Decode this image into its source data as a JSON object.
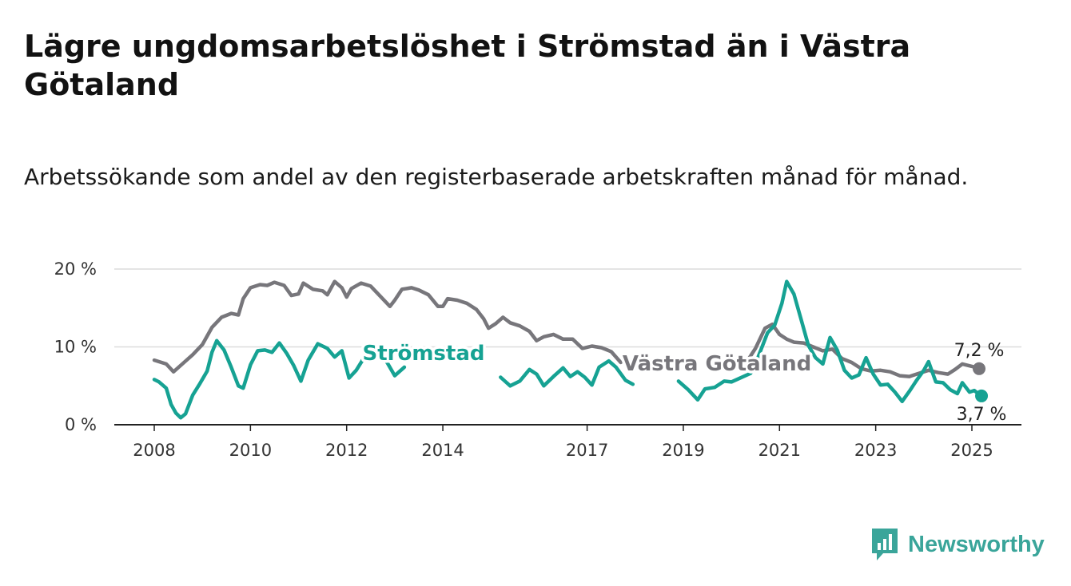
{
  "title": "Lägre ungdomsarbetslöshet i Strömstad än i Västra Götaland",
  "subtitle": "Arbetssökande som andel av den registerbaserade arbetskraften månad för månad.",
  "brand": {
    "name": "Newsworthy",
    "icon": "newsworthy-logo-icon",
    "color": "#3aa59a"
  },
  "chart_data": {
    "type": "line",
    "title": "Lägre ungdomsarbetslöshet i Strömstad än i Västra Götaland",
    "xlabel": "",
    "ylabel": "",
    "xlim": [
      2008.0,
      2025.25
    ],
    "ylim": [
      0,
      20
    ],
    "grid": "horizontal",
    "legend": "inline labels",
    "x_ticks": [
      2008,
      2010,
      2012,
      2014,
      2017,
      2019,
      2021,
      2023,
      2025
    ],
    "x_tick_labels": [
      "2008",
      "2010",
      "2012",
      "2014",
      "2017",
      "2019",
      "2021",
      "2023",
      "2025"
    ],
    "y_ticks": [
      0,
      10,
      20
    ],
    "y_tick_labels": [
      "0 %",
      "10 %",
      "20 %"
    ],
    "series": [
      {
        "name": "Västra Götaland",
        "color": "#77767b",
        "end_label": "7,2 %",
        "points": [
          [
            2008.0,
            8.3
          ],
          [
            2008.25,
            7.8
          ],
          [
            2008.4,
            6.8
          ],
          [
            2008.6,
            7.9
          ],
          [
            2008.8,
            9.0
          ],
          [
            2009.0,
            10.3
          ],
          [
            2009.2,
            12.5
          ],
          [
            2009.4,
            13.8
          ],
          [
            2009.6,
            14.3
          ],
          [
            2009.75,
            14.1
          ],
          [
            2009.85,
            16.2
          ],
          [
            2010.0,
            17.6
          ],
          [
            2010.2,
            18.0
          ],
          [
            2010.35,
            17.9
          ],
          [
            2010.5,
            18.3
          ],
          [
            2010.7,
            17.9
          ],
          [
            2010.85,
            16.6
          ],
          [
            2011.0,
            16.8
          ],
          [
            2011.1,
            18.2
          ],
          [
            2011.3,
            17.4
          ],
          [
            2011.5,
            17.2
          ],
          [
            2011.6,
            16.7
          ],
          [
            2011.75,
            18.4
          ],
          [
            2011.9,
            17.6
          ],
          [
            2012.0,
            16.4
          ],
          [
            2012.1,
            17.5
          ],
          [
            2012.3,
            18.2
          ],
          [
            2012.5,
            17.8
          ],
          [
            2012.7,
            16.5
          ],
          [
            2012.9,
            15.2
          ],
          [
            2013.0,
            16.0
          ],
          [
            2013.15,
            17.4
          ],
          [
            2013.35,
            17.6
          ],
          [
            2013.5,
            17.3
          ],
          [
            2013.7,
            16.7
          ],
          [
            2013.9,
            15.2
          ],
          [
            2014.0,
            15.2
          ],
          [
            2014.1,
            16.2
          ],
          [
            2014.3,
            16.0
          ],
          [
            2014.5,
            15.6
          ],
          [
            2014.7,
            14.8
          ],
          [
            2014.85,
            13.6
          ],
          [
            2014.95,
            12.4
          ],
          [
            2015.1,
            13.0
          ],
          [
            2015.25,
            13.8
          ],
          [
            2015.4,
            13.1
          ],
          [
            2015.6,
            12.7
          ],
          [
            2015.8,
            12.0
          ],
          [
            2015.95,
            10.8
          ],
          [
            2016.1,
            11.3
          ],
          [
            2016.3,
            11.6
          ],
          [
            2016.5,
            11.0
          ],
          [
            2016.7,
            11.0
          ],
          [
            2016.9,
            9.8
          ],
          [
            2017.1,
            10.1
          ],
          [
            2017.3,
            9.9
          ],
          [
            2017.5,
            9.4
          ],
          [
            2017.7,
            8.0
          ],
          [
            2020.3,
            7.9
          ],
          [
            2020.5,
            9.8
          ],
          [
            2020.7,
            12.4
          ],
          [
            2020.85,
            12.9
          ],
          [
            2021.0,
            11.6
          ],
          [
            2021.15,
            11.0
          ],
          [
            2021.3,
            10.6
          ],
          [
            2021.5,
            10.5
          ],
          [
            2021.7,
            10.0
          ],
          [
            2021.9,
            9.5
          ],
          [
            2022.1,
            9.7
          ],
          [
            2022.3,
            8.5
          ],
          [
            2022.5,
            8.0
          ],
          [
            2022.7,
            7.2
          ],
          [
            2022.9,
            6.9
          ],
          [
            2023.1,
            7.0
          ],
          [
            2023.3,
            6.8
          ],
          [
            2023.5,
            6.3
          ],
          [
            2023.7,
            6.2
          ],
          [
            2023.9,
            6.6
          ],
          [
            2024.1,
            7.0
          ],
          [
            2024.3,
            6.7
          ],
          [
            2024.5,
            6.5
          ],
          [
            2024.65,
            7.1
          ],
          [
            2024.8,
            7.8
          ],
          [
            2025.0,
            7.5
          ],
          [
            2025.15,
            7.2
          ]
        ]
      },
      {
        "name": "Strömstad",
        "color": "#16a293",
        "end_label": "3,7 %",
        "points": [
          [
            2008.0,
            5.8
          ],
          [
            2008.1,
            5.5
          ],
          [
            2008.25,
            4.7
          ],
          [
            2008.35,
            2.6
          ],
          [
            2008.45,
            1.5
          ],
          [
            2008.55,
            0.9
          ],
          [
            2008.65,
            1.4
          ],
          [
            2008.8,
            3.8
          ],
          [
            2008.95,
            5.3
          ],
          [
            2009.1,
            6.9
          ],
          [
            2009.2,
            9.3
          ],
          [
            2009.3,
            10.8
          ],
          [
            2009.45,
            9.6
          ],
          [
            2009.6,
            7.4
          ],
          [
            2009.75,
            5.0
          ],
          [
            2009.85,
            4.7
          ],
          [
            2010.0,
            7.7
          ],
          [
            2010.15,
            9.5
          ],
          [
            2010.3,
            9.6
          ],
          [
            2010.45,
            9.3
          ],
          [
            2010.6,
            10.5
          ],
          [
            2010.75,
            9.2
          ],
          [
            2010.9,
            7.6
          ],
          [
            2011.05,
            5.6
          ],
          [
            2011.2,
            8.3
          ],
          [
            2011.4,
            10.4
          ],
          [
            2011.6,
            9.8
          ],
          [
            2011.75,
            8.7
          ],
          [
            2011.9,
            9.5
          ],
          [
            2012.05,
            6.0
          ],
          [
            2012.2,
            7.0
          ],
          [
            2012.4,
            9.0
          ],
          [
            2012.55,
            9.7
          ],
          [
            2012.7,
            9.3
          ],
          [
            2012.85,
            7.9
          ],
          [
            2013.0,
            6.3
          ],
          [
            2013.2,
            7.4
          ],
          [
            2015.2,
            6.1
          ],
          [
            2015.4,
            5.0
          ],
          [
            2015.6,
            5.6
          ],
          [
            2015.8,
            7.1
          ],
          [
            2015.95,
            6.5
          ],
          [
            2016.1,
            5.0
          ],
          [
            2016.3,
            6.2
          ],
          [
            2016.5,
            7.3
          ],
          [
            2016.65,
            6.2
          ],
          [
            2016.8,
            6.8
          ],
          [
            2016.95,
            6.1
          ],
          [
            2017.1,
            5.1
          ],
          [
            2017.25,
            7.4
          ],
          [
            2017.45,
            8.2
          ],
          [
            2017.6,
            7.4
          ],
          [
            2017.8,
            5.7
          ],
          [
            2017.95,
            5.2
          ],
          [
            2018.9,
            5.6
          ],
          [
            2019.1,
            4.5
          ],
          [
            2019.3,
            3.2
          ],
          [
            2019.45,
            4.6
          ],
          [
            2019.65,
            4.8
          ],
          [
            2019.85,
            5.6
          ],
          [
            2020.0,
            5.5
          ],
          [
            2020.4,
            6.6
          ],
          [
            2020.55,
            8.6
          ],
          [
            2020.75,
            11.8
          ],
          [
            2020.9,
            12.8
          ],
          [
            2021.05,
            15.6
          ],
          [
            2021.15,
            18.4
          ],
          [
            2021.3,
            16.8
          ],
          [
            2021.45,
            13.5
          ],
          [
            2021.6,
            10.2
          ],
          [
            2021.75,
            8.6
          ],
          [
            2021.9,
            7.8
          ],
          [
            2022.05,
            11.2
          ],
          [
            2022.2,
            9.6
          ],
          [
            2022.35,
            7.0
          ],
          [
            2022.5,
            6.0
          ],
          [
            2022.65,
            6.4
          ],
          [
            2022.8,
            8.6
          ],
          [
            2022.95,
            6.5
          ],
          [
            2023.1,
            5.1
          ],
          [
            2023.25,
            5.2
          ],
          [
            2023.4,
            4.2
          ],
          [
            2023.55,
            3.0
          ],
          [
            2023.7,
            4.3
          ],
          [
            2023.85,
            5.7
          ],
          [
            2024.0,
            7.0
          ],
          [
            2024.1,
            8.1
          ],
          [
            2024.25,
            5.5
          ],
          [
            2024.4,
            5.4
          ],
          [
            2024.55,
            4.5
          ],
          [
            2024.7,
            4.0
          ],
          [
            2024.8,
            5.4
          ],
          [
            2024.95,
            4.2
          ],
          [
            2025.05,
            4.4
          ],
          [
            2025.15,
            3.9
          ],
          [
            2025.2,
            3.7
          ]
        ]
      }
    ],
    "series_labels": [
      {
        "series": "Strömstad",
        "text": "Strömstad",
        "x": 2013.6,
        "y": 8.3
      },
      {
        "series": "Västra Götaland",
        "text": "Västra Götaland",
        "x": 2019.7,
        "y": 7.0
      }
    ]
  }
}
